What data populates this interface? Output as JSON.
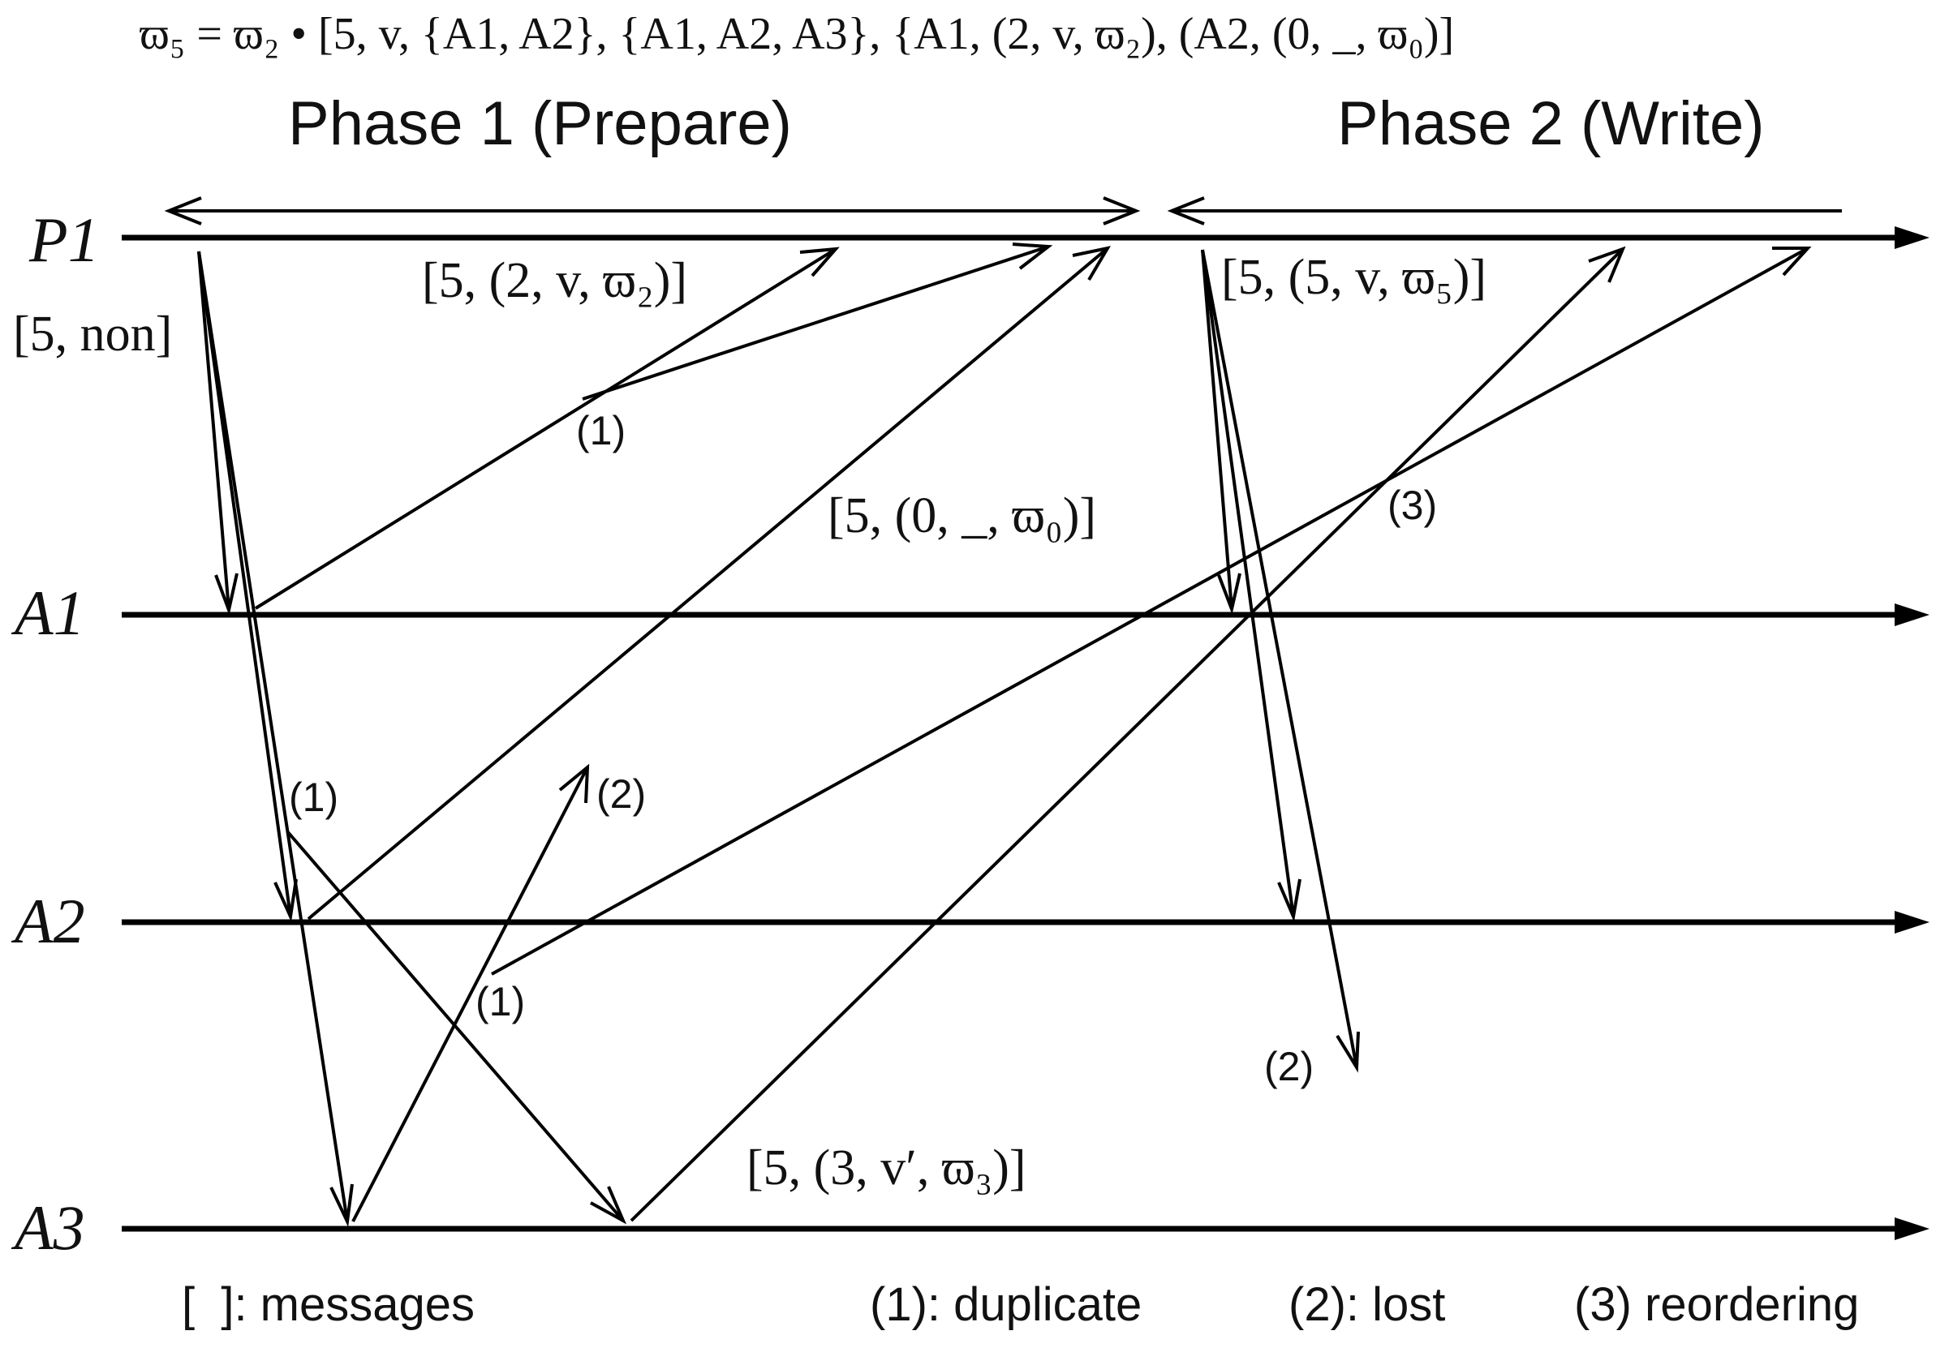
{
  "formula": "ϖ₅ = ϖ₂ • [5, v, {A1, A2}, {A1, A2, A3}, {A1, (2, v, ϖ₂), (A2, (0, _, ϖ₀)]",
  "phases": {
    "phase1": "Phase 1 (Prepare)",
    "phase2": "Phase 2 (Write)"
  },
  "processes": [
    "P1",
    "A1",
    "A2",
    "A3"
  ],
  "messages": {
    "prepare": "[5, non]",
    "promise_a1": "[5, (2, v, ϖ₂)]",
    "promise_a2": "[5, (0, _, ϖ₀)]",
    "promise_a3": "[5, (3, v′, ϖ₃)]",
    "write": "[5, (5, v, ϖ₅)]"
  },
  "markers": {
    "dup_a1_reply": "(1)",
    "dup_prepare": "(1)",
    "dup_a2_reply": "(1)",
    "lost_a3_reply": "(2)",
    "reorder": "(3)",
    "lost_write": "(2)"
  },
  "legend": {
    "messages": "[  ]: messages",
    "duplicate": "(1): duplicate",
    "lost": "(2): lost",
    "reordering": "(3) reordering"
  }
}
